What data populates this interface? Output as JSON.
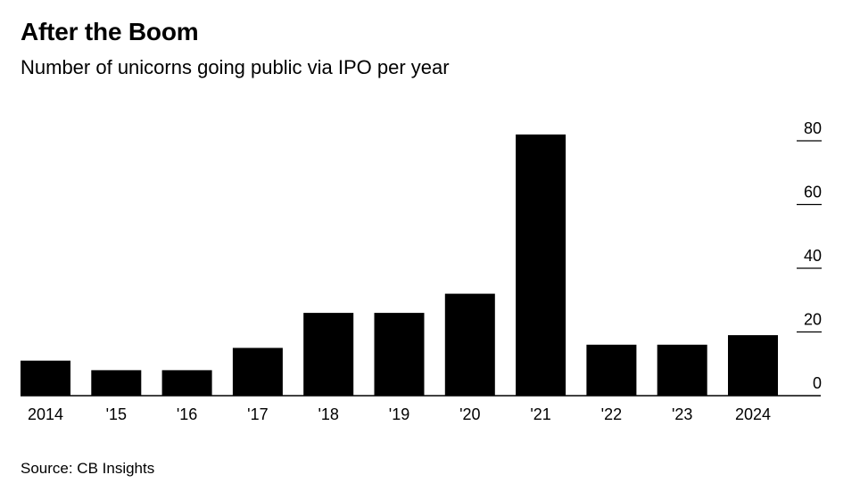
{
  "title": "After the Boom",
  "subtitle": "Number of unicorns going public via IPO per year",
  "source": "Source: CB Insights",
  "colors": {
    "bar": "#000000",
    "axis": "#000000",
    "background": "#ffffff"
  },
  "chart_data": {
    "type": "bar",
    "categories": [
      "2014",
      "'15",
      "'16",
      "'17",
      "'18",
      "'19",
      "'20",
      "'21",
      "'22",
      "'23",
      "2024"
    ],
    "values": [
      11,
      8,
      8,
      15,
      26,
      26,
      32,
      82,
      16,
      16,
      19
    ],
    "title": "After the Boom",
    "subtitle": "Number of unicorns going public via IPO per year",
    "xlabel": "",
    "ylabel": "",
    "ylim": [
      0,
      80
    ],
    "yticks": [
      0,
      20,
      40,
      60,
      80
    ],
    "yaxis_position": "right",
    "grid": false,
    "legend": "none"
  }
}
